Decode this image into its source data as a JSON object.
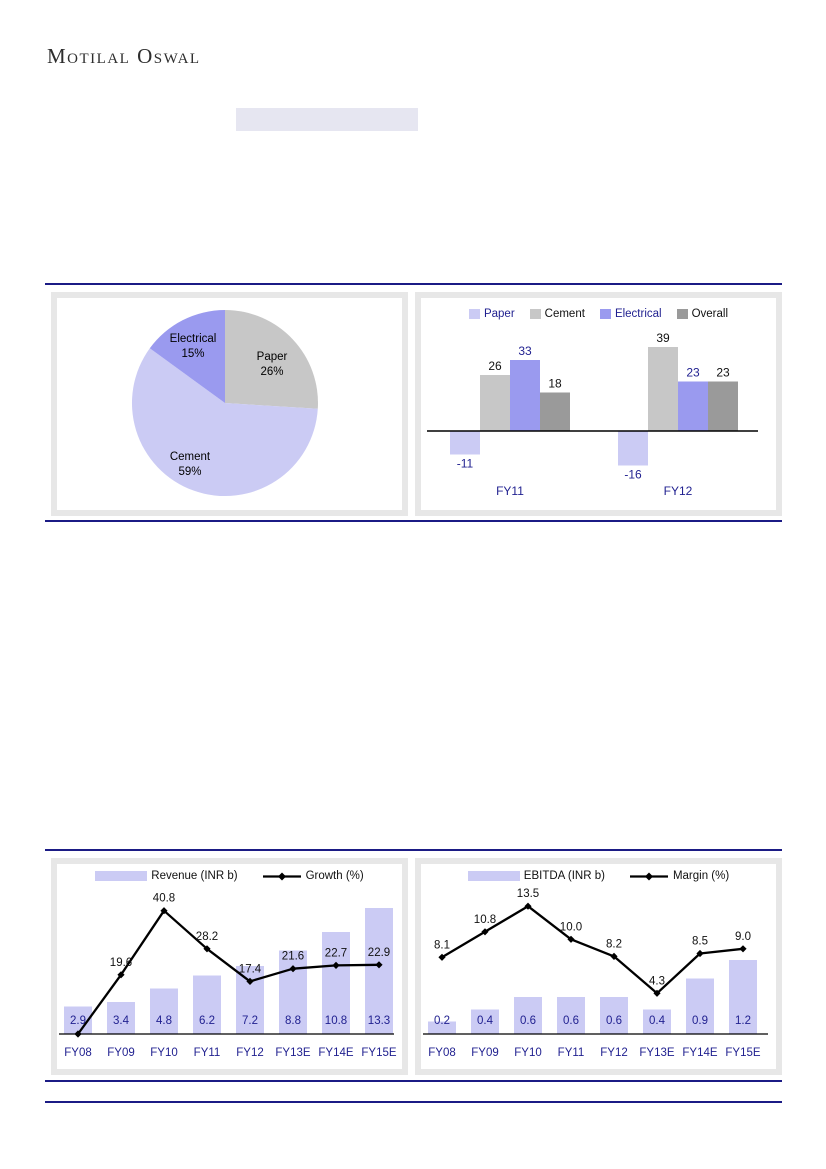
{
  "brand": "Motilal Oswal",
  "highlight_note": "",
  "colors": {
    "navy": "#1f1f8f",
    "rule_navy": "#1b1b85",
    "black": "#111111",
    "lavender": "#cbcbf4",
    "periwinkle": "#9a9aef",
    "gray": "#c7c7c7",
    "dark_gray": "#9a9a9a",
    "highlight": "#e6e6f1",
    "panel_border": "#e7e7e7"
  },
  "chart_data": [
    {
      "id": "segment-revenue-mix-pie",
      "type": "pie",
      "title": "",
      "start": "top",
      "direction": "clockwise",
      "legend_position": "none",
      "slices": [
        {
          "label": "Paper",
          "value": 26,
          "display": "26%",
          "color_key": "gray"
        },
        {
          "label": "Cement",
          "value": 59,
          "display": "59%",
          "color_key": "lavender"
        },
        {
          "label": "Electrical",
          "value": 15,
          "display": "15%",
          "color_key": "periwinkle"
        }
      ]
    },
    {
      "id": "segment-growth-bar",
      "type": "bar",
      "title": "",
      "categories": [
        "FY11",
        "FY12"
      ],
      "series": [
        {
          "name": "Paper",
          "values": [
            -11,
            -16
          ],
          "color_key": "lavender",
          "label_color_key": "navy"
        },
        {
          "name": "Cement",
          "values": [
            26,
            39
          ],
          "color_key": "gray",
          "label_color_key": "black"
        },
        {
          "name": "Electrical",
          "values": [
            33,
            23
          ],
          "color_key": "periwinkle",
          "label_color_key": "navy"
        },
        {
          "name": "Overall",
          "values": [
            18,
            23
          ],
          "color_key": "dark_gray",
          "label_color_key": "black"
        }
      ],
      "ylim": [
        -20,
        40
      ],
      "grid": false,
      "legend_position": "top"
    },
    {
      "id": "revenue-growth-combo",
      "type": "bar+line",
      "title": "",
      "categories": [
        "FY08",
        "FY09",
        "FY10",
        "FY11",
        "FY12",
        "FY13E",
        "FY14E",
        "FY15E"
      ],
      "bar_series": {
        "name": "Revenue (INR b)",
        "values": [
          2.9,
          3.4,
          4.8,
          6.2,
          7.2,
          8.8,
          10.8,
          13.3
        ],
        "labels": [
          "2.9",
          "3.4",
          "4.8",
          "6.2",
          "7.2",
          "8.8",
          "10.8",
          "13.3"
        ],
        "color_key": "lavender",
        "ylim": [
          0,
          15
        ]
      },
      "line_series": {
        "name": "Growth (%)",
        "values": [
          0,
          19.6,
          40.8,
          28.2,
          17.4,
          21.6,
          22.7,
          22.9
        ],
        "labels": [
          "",
          "19.6",
          "40.8",
          "28.2",
          "17.4",
          "21.6",
          "22.7",
          "22.9"
        ],
        "color_key": "black",
        "ylim": [
          0,
          47
        ]
      },
      "grid": false,
      "legend_position": "top"
    },
    {
      "id": "ebitda-margin-combo",
      "type": "bar+line",
      "title": "",
      "categories": [
        "FY08",
        "FY09",
        "FY10",
        "FY11",
        "FY12",
        "FY13E",
        "FY14E",
        "FY15E"
      ],
      "bar_series": {
        "name": "EBITDA (INR b)",
        "values": [
          0.2,
          0.4,
          0.6,
          0.6,
          0.6,
          0.4,
          0.9,
          1.2
        ],
        "labels": [
          "0.2",
          "0.4",
          "0.6",
          "0.6",
          "0.6",
          "0.4",
          "0.9",
          "1.2"
        ],
        "color_key": "lavender",
        "ylim": [
          0,
          2.3
        ]
      },
      "line_series": {
        "name": "Margin (%)",
        "values": [
          8.1,
          10.8,
          13.5,
          10.0,
          8.2,
          4.3,
          8.5,
          9.0
        ],
        "labels": [
          "8.1",
          "10.8",
          "13.5",
          "10.0",
          "8.2",
          "4.3",
          "8.5",
          "9.0"
        ],
        "color_key": "black",
        "ylim": [
          0,
          15
        ]
      },
      "grid": false,
      "legend_position": "top"
    }
  ]
}
